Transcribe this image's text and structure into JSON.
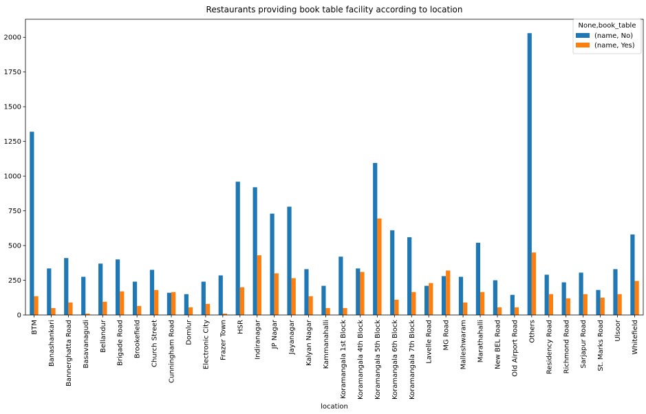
{
  "chart_data": {
    "type": "bar",
    "title": "Restaurants providing book table facility according to location",
    "xlabel": "location",
    "ylabel": "",
    "ylim": [
      0,
      2130
    ],
    "yticks": [
      0,
      250,
      500,
      750,
      1000,
      1250,
      1500,
      1750,
      2000
    ],
    "grid": false,
    "legend": {
      "title": "None,book_table",
      "placement": "top-right"
    },
    "categories": [
      "BTM",
      "Banashankari",
      "Bannerghatta Road",
      "Basavanagudi",
      "Bellandur",
      "Brigade Road",
      "Brookefield",
      "Church Street",
      "Cunningham Road",
      "Domlur",
      "Electronic City",
      "Frazer Town",
      "HSR",
      "Indiranagar",
      "JP Nagar",
      "Jayanagar",
      "Kalyan Nagar",
      "Kammanahalli",
      "Koramangala 1st Block",
      "Koramangala 4th Block",
      "Koramangala 5th Block",
      "Koramangala 6th Block",
      "Koramangala 7th Block",
      "Lavelle Road",
      "MG Road",
      "Malleshwaram",
      "Marathahalli",
      "New BEL Road",
      "Old Airport Road",
      "Others",
      "Residency Road",
      "Richmond Road",
      "Sarjapur Road",
      "St. Marks Road",
      "Ulsoor",
      "Whitefield"
    ],
    "series": [
      {
        "name": "(name, No)",
        "color": "#1f77b4",
        "values": [
          1320,
          335,
          410,
          275,
          370,
          400,
          240,
          325,
          160,
          150,
          240,
          285,
          960,
          920,
          730,
          780,
          330,
          210,
          420,
          335,
          1095,
          610,
          560,
          210,
          280,
          275,
          520,
          250,
          145,
          2030,
          290,
          235,
          305,
          180,
          330,
          580
        ]
      },
      {
        "name": "(name, Yes)",
        "color": "#ff7f0e",
        "values": [
          135,
          50,
          90,
          10,
          95,
          170,
          65,
          180,
          165,
          55,
          80,
          10,
          200,
          430,
          300,
          265,
          135,
          50,
          50,
          310,
          695,
          110,
          165,
          230,
          320,
          90,
          165,
          55,
          55,
          450,
          150,
          120,
          150,
          125,
          150,
          245
        ]
      }
    ]
  }
}
